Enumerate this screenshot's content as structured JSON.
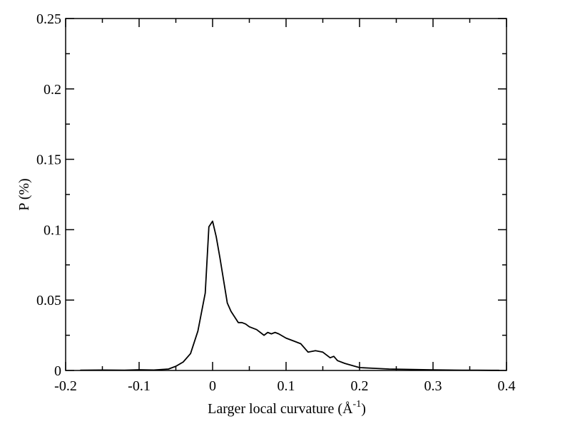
{
  "chart_data": {
    "type": "line",
    "title": "",
    "xlabel_main": "Larger local curvature (Å",
    "xlabel_sup": "-1",
    "xlabel_end": ")",
    "ylabel": "P (%)",
    "xlim": [
      -0.2,
      0.4
    ],
    "ylim": [
      0,
      0.25
    ],
    "x_ticks": [
      -0.2,
      -0.1,
      0,
      0.1,
      0.2,
      0.3,
      0.4
    ],
    "x_tick_labels": [
      "-0.2",
      "-0.1",
      "0",
      "0.1",
      "0.2",
      "0.3",
      "0.4"
    ],
    "y_ticks": [
      0,
      0.05,
      0.1,
      0.15,
      0.2,
      0.25
    ],
    "y_tick_labels": [
      "0",
      "0.05",
      "0.1",
      "0.15",
      "0.2",
      "0.25"
    ],
    "grid": false,
    "series": [
      {
        "x": [
          -0.18,
          -0.15,
          -0.12,
          -0.1,
          -0.08,
          -0.06,
          -0.05,
          -0.04,
          -0.03,
          -0.02,
          -0.01,
          -0.005,
          0.0,
          0.005,
          0.01,
          0.02,
          0.025,
          0.03,
          0.035,
          0.04,
          0.045,
          0.05,
          0.06,
          0.07,
          0.075,
          0.08,
          0.085,
          0.09,
          0.1,
          0.11,
          0.12,
          0.13,
          0.14,
          0.15,
          0.16,
          0.165,
          0.17,
          0.18,
          0.2,
          0.22,
          0.24,
          0.26,
          0.28,
          0.3,
          0.32,
          0.34,
          0.36,
          0.38,
          0.39
        ],
        "y": [
          0.0002,
          0.0003,
          0.0002,
          0.0005,
          0.0003,
          0.001,
          0.003,
          0.006,
          0.012,
          0.028,
          0.055,
          0.102,
          0.106,
          0.095,
          0.08,
          0.048,
          0.042,
          0.038,
          0.034,
          0.034,
          0.033,
          0.031,
          0.029,
          0.025,
          0.027,
          0.026,
          0.027,
          0.026,
          0.023,
          0.021,
          0.019,
          0.013,
          0.014,
          0.013,
          0.009,
          0.01,
          0.007,
          0.005,
          0.002,
          0.0015,
          0.001,
          0.0008,
          0.0006,
          0.0004,
          0.0003,
          0.0002,
          0.0002,
          0.0001,
          0.0001
        ]
      }
    ]
  }
}
